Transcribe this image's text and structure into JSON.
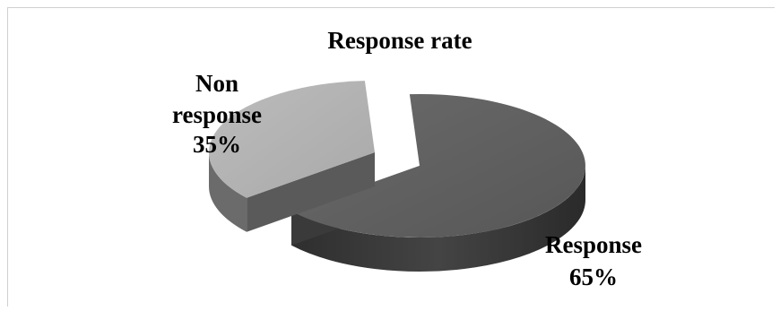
{
  "chart_data": {
    "type": "pie",
    "title": "Response rate",
    "slices": [
      {
        "name": "Response",
        "label_line1": "Response",
        "label_line2": "65%",
        "value": 65
      },
      {
        "name": "Non response",
        "label_line1": "Non",
        "label_line2": "response",
        "label_line3": "35%",
        "value": 35
      }
    ],
    "exploded": true,
    "style_3d": true
  },
  "colors": {
    "response_top": "#5e5e5e",
    "response_side": "#3a3a3a",
    "non_response_top": "#b4b4b4",
    "non_response_side": "#6b6b6b"
  }
}
